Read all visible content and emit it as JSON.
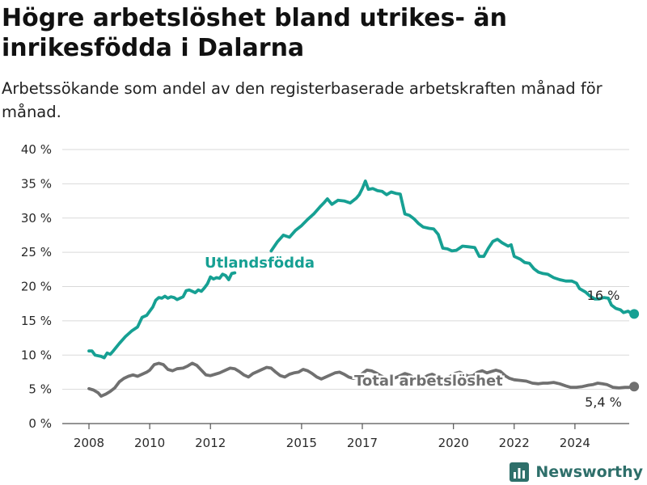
{
  "header": {
    "title": "Högre arbetslöshet bland utrikes- än inrikesfödda i Dalarna",
    "subtitle": "Arbetssökande som andel av den registerbaserade arbetskraften månad för månad."
  },
  "brand": {
    "name": "Newsworthy",
    "icon": "bar-chart-logo-icon",
    "color": "#2e6f6a"
  },
  "chart_data": {
    "type": "line",
    "title": "Högre arbetslöshet bland utrikes- än inrikesfödda i Dalarna",
    "subtitle": "Arbetssökande som andel av den registerbaserade arbetskraften månad för månad.",
    "x_unit": "year",
    "xlim": [
      2007.0,
      2025.85
    ],
    "ylim": [
      0,
      40
    ],
    "y_ticks": [
      0,
      5,
      10,
      15,
      20,
      25,
      30,
      35,
      40
    ],
    "y_tick_labels": [
      "0 %",
      "5 %",
      "10 %",
      "15 %",
      "20 %",
      "25 %",
      "30 %",
      "35 %",
      "40 %"
    ],
    "x_ticks": [
      2008,
      2010,
      2012,
      2015,
      2017,
      2020,
      2022,
      2024
    ],
    "x_tick_labels": [
      "2008",
      "2010",
      "2012",
      "2015",
      "2017",
      "2020",
      "2022",
      "2024"
    ],
    "grid": "horizontal",
    "legend": "inline labels",
    "series": [
      {
        "name": "Utlandsfödda",
        "color": "#16a093",
        "end_label": "16 %",
        "points": [
          [
            2008.0,
            10.6
          ],
          [
            2008.1,
            10.6
          ],
          [
            2008.2,
            10.0
          ],
          [
            2008.4,
            9.8
          ],
          [
            2008.5,
            9.6
          ],
          [
            2008.6,
            10.3
          ],
          [
            2008.7,
            10.1
          ],
          [
            2008.8,
            10.6
          ],
          [
            2009.0,
            11.7
          ],
          [
            2009.2,
            12.7
          ],
          [
            2009.4,
            13.5
          ],
          [
            2009.6,
            14.1
          ],
          [
            2009.75,
            15.5
          ],
          [
            2009.9,
            15.8
          ],
          [
            2010.0,
            16.4
          ],
          [
            2010.1,
            17.0
          ],
          [
            2010.2,
            18.0
          ],
          [
            2010.3,
            18.4
          ],
          [
            2010.4,
            18.3
          ],
          [
            2010.5,
            18.6
          ],
          [
            2010.6,
            18.3
          ],
          [
            2010.7,
            18.5
          ],
          [
            2010.8,
            18.4
          ],
          [
            2010.9,
            18.1
          ],
          [
            2011.0,
            18.3
          ],
          [
            2011.1,
            18.5
          ],
          [
            2011.2,
            19.4
          ],
          [
            2011.3,
            19.5
          ],
          [
            2011.4,
            19.3
          ],
          [
            2011.5,
            19.1
          ],
          [
            2011.6,
            19.5
          ],
          [
            2011.7,
            19.3
          ],
          [
            2011.8,
            19.8
          ],
          [
            2011.9,
            20.4
          ],
          [
            2012.0,
            21.4
          ],
          [
            2012.1,
            21.1
          ],
          [
            2012.2,
            21.3
          ],
          [
            2012.3,
            21.2
          ],
          [
            2012.4,
            21.8
          ],
          [
            2012.5,
            21.6
          ],
          [
            2012.6,
            21.0
          ],
          [
            2012.7,
            21.9
          ],
          [
            2012.8,
            22.0
          ]
        ],
        "points_after_label": [
          [
            2014.0,
            25.2
          ],
          [
            2014.2,
            26.5
          ],
          [
            2014.4,
            27.5
          ],
          [
            2014.6,
            27.2
          ],
          [
            2014.8,
            28.2
          ],
          [
            2015.0,
            28.9
          ],
          [
            2015.2,
            29.8
          ],
          [
            2015.4,
            30.6
          ],
          [
            2015.6,
            31.6
          ],
          [
            2015.75,
            32.3
          ],
          [
            2015.85,
            32.8
          ],
          [
            2016.0,
            32.0
          ],
          [
            2016.2,
            32.6
          ],
          [
            2016.4,
            32.5
          ],
          [
            2016.6,
            32.2
          ],
          [
            2016.8,
            32.9
          ],
          [
            2016.9,
            33.4
          ],
          [
            2017.0,
            34.3
          ],
          [
            2017.1,
            35.4
          ],
          [
            2017.2,
            34.2
          ],
          [
            2017.35,
            34.3
          ],
          [
            2017.5,
            34.0
          ],
          [
            2017.65,
            33.9
          ],
          [
            2017.8,
            33.4
          ],
          [
            2017.95,
            33.8
          ],
          [
            2018.1,
            33.6
          ],
          [
            2018.25,
            33.5
          ],
          [
            2018.4,
            30.6
          ],
          [
            2018.55,
            30.4
          ],
          [
            2018.7,
            29.9
          ],
          [
            2018.85,
            29.2
          ],
          [
            2019.0,
            28.7
          ],
          [
            2019.2,
            28.5
          ],
          [
            2019.35,
            28.4
          ],
          [
            2019.5,
            27.6
          ],
          [
            2019.65,
            25.6
          ],
          [
            2019.8,
            25.5
          ],
          [
            2019.95,
            25.2
          ],
          [
            2020.1,
            25.3
          ],
          [
            2020.3,
            25.9
          ],
          [
            2020.5,
            25.8
          ],
          [
            2020.7,
            25.7
          ],
          [
            2020.85,
            24.4
          ],
          [
            2021.0,
            24.4
          ],
          [
            2021.15,
            25.6
          ],
          [
            2021.3,
            26.6
          ],
          [
            2021.45,
            26.9
          ],
          [
            2021.6,
            26.4
          ],
          [
            2021.8,
            25.9
          ],
          [
            2021.9,
            26.1
          ],
          [
            2022.0,
            24.4
          ],
          [
            2022.2,
            24.0
          ],
          [
            2022.35,
            23.5
          ],
          [
            2022.5,
            23.4
          ],
          [
            2022.65,
            22.6
          ],
          [
            2022.8,
            22.1
          ],
          [
            2022.95,
            21.9
          ],
          [
            2023.1,
            21.8
          ],
          [
            2023.3,
            21.3
          ],
          [
            2023.5,
            21.0
          ],
          [
            2023.7,
            20.8
          ],
          [
            2023.9,
            20.8
          ],
          [
            2024.05,
            20.5
          ],
          [
            2024.15,
            19.7
          ],
          [
            2024.35,
            19.2
          ],
          [
            2024.5,
            18.6
          ],
          [
            2024.65,
            18.2
          ],
          [
            2024.8,
            18.2
          ],
          [
            2024.95,
            18.4
          ],
          [
            2025.1,
            18.3
          ],
          [
            2025.2,
            17.3
          ],
          [
            2025.35,
            16.8
          ],
          [
            2025.5,
            16.6
          ],
          [
            2025.6,
            16.2
          ],
          [
            2025.75,
            16.4
          ],
          [
            2025.85,
            16.1
          ],
          [
            2025.95,
            16.0
          ]
        ]
      },
      {
        "name": "Total arbetslöshet",
        "color": "#707070",
        "end_label": "5,4 %",
        "points": [
          [
            2008.0,
            5.1
          ],
          [
            2008.15,
            4.9
          ],
          [
            2008.3,
            4.5
          ],
          [
            2008.4,
            4.0
          ],
          [
            2008.55,
            4.3
          ],
          [
            2008.7,
            4.7
          ],
          [
            2008.85,
            5.2
          ],
          [
            2009.0,
            6.1
          ],
          [
            2009.15,
            6.6
          ],
          [
            2009.3,
            6.9
          ],
          [
            2009.45,
            7.1
          ],
          [
            2009.6,
            6.9
          ],
          [
            2009.75,
            7.2
          ],
          [
            2009.9,
            7.5
          ],
          [
            2010.0,
            7.8
          ],
          [
            2010.15,
            8.6
          ],
          [
            2010.3,
            8.8
          ],
          [
            2010.45,
            8.6
          ],
          [
            2010.6,
            7.9
          ],
          [
            2010.75,
            7.7
          ],
          [
            2010.9,
            8.0
          ],
          [
            2011.1,
            8.1
          ],
          [
            2011.25,
            8.4
          ],
          [
            2011.4,
            8.8
          ],
          [
            2011.55,
            8.5
          ],
          [
            2011.7,
            7.8
          ],
          [
            2011.85,
            7.1
          ],
          [
            2012.0,
            7.0
          ],
          [
            2012.15,
            7.2
          ],
          [
            2012.3,
            7.4
          ],
          [
            2012.5,
            7.8
          ],
          [
            2012.65,
            8.1
          ],
          [
            2012.8,
            8.0
          ],
          [
            2012.95,
            7.6
          ],
          [
            2013.1,
            7.1
          ],
          [
            2013.25,
            6.8
          ],
          [
            2013.4,
            7.3
          ],
          [
            2013.55,
            7.6
          ],
          [
            2013.7,
            7.9
          ],
          [
            2013.85,
            8.2
          ],
          [
            2014.0,
            8.1
          ],
          [
            2014.15,
            7.5
          ],
          [
            2014.3,
            7.0
          ],
          [
            2014.45,
            6.8
          ],
          [
            2014.6,
            7.2
          ],
          [
            2014.75,
            7.4
          ],
          [
            2014.9,
            7.5
          ],
          [
            2015.05,
            7.9
          ],
          [
            2015.2,
            7.7
          ],
          [
            2015.35,
            7.3
          ],
          [
            2015.5,
            6.8
          ],
          [
            2015.65,
            6.5
          ],
          [
            2015.8,
            6.8
          ],
          [
            2015.95,
            7.1
          ],
          [
            2016.1,
            7.4
          ],
          [
            2016.25,
            7.5
          ],
          [
            2016.4,
            7.2
          ],
          [
            2016.55,
            6.8
          ],
          [
            2016.7,
            6.6
          ],
          [
            2016.85,
            6.8
          ],
          [
            2017.0,
            7.3
          ],
          [
            2017.15,
            7.8
          ],
          [
            2017.3,
            7.7
          ],
          [
            2017.45,
            7.4
          ],
          [
            2017.6,
            7.0
          ],
          [
            2017.75,
            6.7
          ],
          [
            2017.9,
            6.5
          ],
          [
            2018.1,
            6.7
          ],
          [
            2018.25,
            7.0
          ],
          [
            2018.4,
            7.3
          ],
          [
            2018.55,
            7.1
          ],
          [
            2018.7,
            6.7
          ],
          [
            2018.85,
            6.5
          ],
          [
            2019.0,
            6.6
          ],
          [
            2019.15,
            7.0
          ],
          [
            2019.3,
            7.2
          ],
          [
            2019.45,
            6.9
          ],
          [
            2019.6,
            6.6
          ],
          [
            2019.75,
            6.6
          ],
          [
            2019.9,
            6.9
          ],
          [
            2020.05,
            7.3
          ],
          [
            2020.2,
            7.5
          ],
          [
            2020.35,
            7.2
          ],
          [
            2020.5,
            6.9
          ],
          [
            2020.65,
            7.0
          ],
          [
            2020.8,
            7.5
          ],
          [
            2020.95,
            7.7
          ],
          [
            2021.1,
            7.4
          ],
          [
            2021.25,
            7.6
          ],
          [
            2021.4,
            7.8
          ],
          [
            2021.55,
            7.6
          ],
          [
            2021.7,
            7.0
          ],
          [
            2021.85,
            6.6
          ],
          [
            2022.0,
            6.4
          ],
          [
            2022.2,
            6.3
          ],
          [
            2022.4,
            6.2
          ],
          [
            2022.6,
            5.9
          ],
          [
            2022.8,
            5.8
          ],
          [
            2022.95,
            5.9
          ],
          [
            2023.1,
            5.9
          ],
          [
            2023.3,
            6.0
          ],
          [
            2023.5,
            5.8
          ],
          [
            2023.7,
            5.5
          ],
          [
            2023.85,
            5.3
          ],
          [
            2024.05,
            5.3
          ],
          [
            2024.25,
            5.4
          ],
          [
            2024.45,
            5.6
          ],
          [
            2024.6,
            5.7
          ],
          [
            2024.75,
            5.9
          ],
          [
            2024.9,
            5.8
          ],
          [
            2025.05,
            5.7
          ],
          [
            2025.25,
            5.3
          ],
          [
            2025.45,
            5.2
          ],
          [
            2025.65,
            5.3
          ],
          [
            2025.8,
            5.3
          ],
          [
            2025.95,
            5.4
          ]
        ]
      }
    ]
  }
}
